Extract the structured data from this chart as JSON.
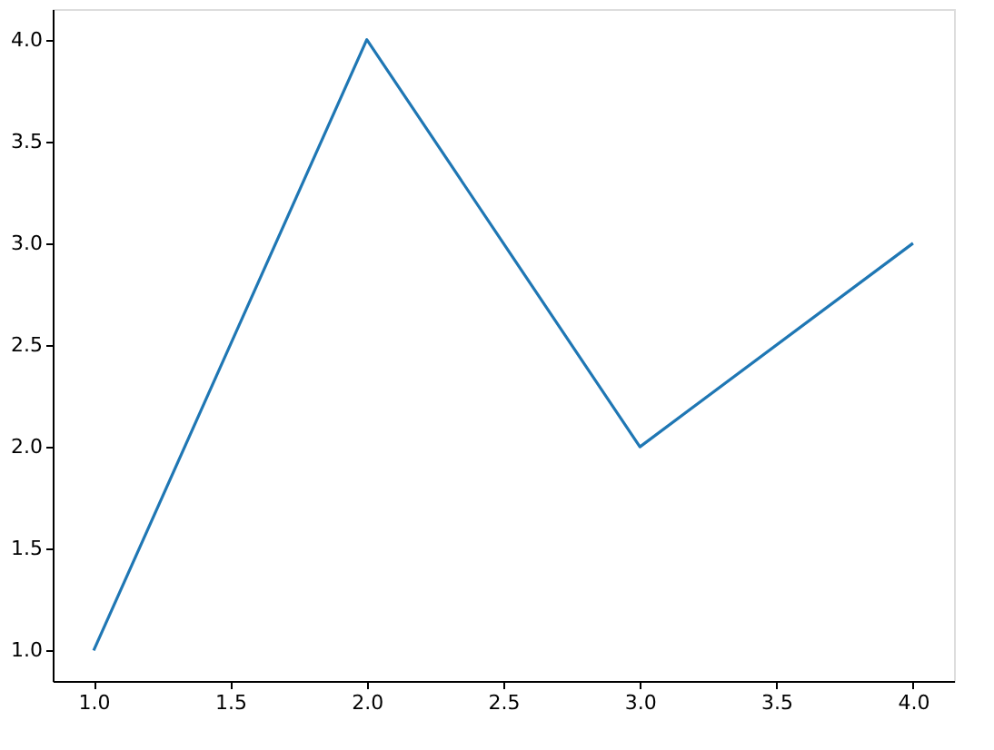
{
  "chart_data": {
    "type": "line",
    "x": [
      1,
      2,
      3,
      4
    ],
    "series": [
      {
        "color": "#1f77b4",
        "values": [
          1,
          4,
          2,
          3
        ]
      }
    ],
    "xlim": [
      0.85,
      4.15
    ],
    "ylim": [
      0.85,
      4.15
    ],
    "xticks": [
      {
        "value": 1,
        "label": "1.0"
      },
      {
        "value": 1.5,
        "label": "1.5"
      },
      {
        "value": 2,
        "label": "2.0"
      },
      {
        "value": 2.5,
        "label": "2.5"
      },
      {
        "value": 3,
        "label": "3.0"
      },
      {
        "value": 3.5,
        "label": "3.5"
      },
      {
        "value": 4,
        "label": "4.0"
      }
    ],
    "yticks": [
      {
        "value": 1,
        "label": "1.0"
      },
      {
        "value": 1.5,
        "label": "1.5"
      },
      {
        "value": 2,
        "label": "2.0"
      },
      {
        "value": 2.5,
        "label": "2.5"
      },
      {
        "value": 3,
        "label": "3.0"
      },
      {
        "value": 3.5,
        "label": "3.5"
      },
      {
        "value": 4,
        "label": "4.0"
      }
    ],
    "grid": false,
    "marker": "none",
    "line_style": "solid"
  }
}
